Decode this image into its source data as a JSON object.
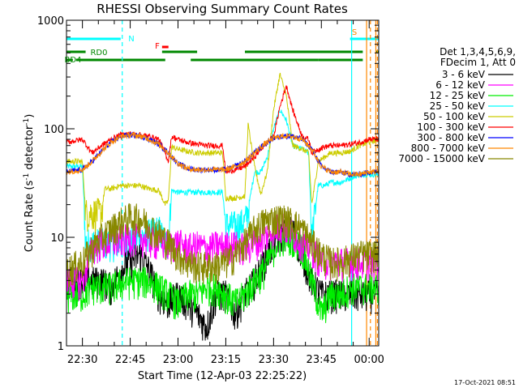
{
  "chart_data": {
    "type": "line",
    "title": "RHESSI Observing Summary Count Rates",
    "xlabel": "Start Time (12-Apr-03 22:25:22)",
    "ylabel": "Count Rate (s⁻¹ detector⁻¹)",
    "ylabel_parts": [
      "Count Rate (s",
      "-1",
      " detector",
      "-1",
      ")"
    ],
    "y_scale": "log",
    "ylim": [
      1,
      1000
    ],
    "xlim_minutes": [
      22.6,
      97.4
    ],
    "x_ticks": [
      {
        "label": "22:30",
        "minutes": 30
      },
      {
        "label": "22:45",
        "minutes": 45
      },
      {
        "label": "23:00",
        "minutes": 60
      },
      {
        "label": "23:15",
        "minutes": 75
      },
      {
        "label": "23:30",
        "minutes": 90
      },
      {
        "label": "23:45",
        "minutes": 105
      },
      {
        "label": "00:00",
        "minutes": 120
      }
    ],
    "y_ticks": [
      {
        "label": "1",
        "value": 1
      },
      {
        "label": "10",
        "value": 10
      },
      {
        "label": "100",
        "value": 100
      },
      {
        "label": "1000",
        "value": 1000
      }
    ],
    "x_start_minutes": 25,
    "x_end_minutes": 123,
    "legend_header": [
      "Det 1,3,4,5,6,9,",
      "FDecim 1, Att 0"
    ],
    "legend_position": "right",
    "footer_timestamp": "17-Oct-2021 08:51",
    "series": [
      {
        "name": "3 - 6 keV",
        "color": "#000000",
        "x": [
          25,
          30,
          33,
          36,
          39,
          42,
          45,
          48,
          51,
          54,
          57,
          60,
          63,
          66,
          69,
          72,
          75,
          78,
          81,
          84,
          87,
          90,
          93,
          96,
          99,
          102,
          105,
          108,
          111,
          114,
          117,
          120,
          123
        ],
        "y": [
          4,
          4,
          4,
          4,
          3.5,
          5,
          6,
          7,
          5,
          3,
          2.5,
          3,
          2.5,
          2,
          1.5,
          3,
          3,
          2,
          3,
          4,
          6,
          9,
          11,
          12,
          7,
          4,
          3,
          3,
          3,
          3,
          3,
          3,
          3
        ]
      },
      {
        "name": "6 - 12 keV",
        "color": "#ff00ff",
        "x": [
          25,
          30,
          33,
          36,
          39,
          42,
          45,
          48,
          51,
          54,
          57,
          60,
          63,
          66,
          69,
          72,
          75,
          78,
          81,
          84,
          87,
          90,
          93,
          96,
          99,
          102,
          105,
          108,
          111,
          114,
          117,
          120,
          123
        ],
        "y": [
          4,
          4,
          8,
          9,
          9,
          9.5,
          10,
          10,
          9.5,
          9,
          8.5,
          9,
          8,
          8.5,
          8,
          8.5,
          8.5,
          8.5,
          8,
          9,
          10,
          12,
          13,
          11,
          9,
          8,
          6,
          6,
          6,
          6,
          6,
          6,
          6
        ]
      },
      {
        "name": "12 - 25 keV",
        "color": "#00ee00",
        "x": [
          25,
          30,
          33,
          36,
          39,
          42,
          45,
          48,
          51,
          54,
          57,
          60,
          63,
          66,
          69,
          72,
          75,
          78,
          81,
          84,
          87,
          90,
          93,
          96,
          99,
          102,
          105,
          108,
          111,
          114,
          117,
          120,
          123
        ],
        "y": [
          3,
          3,
          3.5,
          3.5,
          3.5,
          3.8,
          4,
          4,
          4,
          3.5,
          3,
          2.5,
          3,
          3,
          3.5,
          3.5,
          3,
          2.5,
          3,
          4,
          5,
          8,
          10,
          10,
          8,
          4,
          2,
          3,
          3,
          3.5,
          3.5,
          3.5,
          3.5
        ]
      },
      {
        "name": "25 - 50 keV",
        "color": "#00ffff",
        "x": [
          25,
          30,
          31,
          33,
          36,
          39,
          42,
          45,
          48,
          51,
          54,
          56,
          57,
          58,
          60,
          63,
          66,
          69,
          72,
          74,
          75,
          78,
          81,
          82,
          84,
          86,
          88,
          90,
          92,
          94,
          96,
          99,
          101,
          102,
          104,
          106,
          108,
          111,
          114,
          117,
          120,
          123
        ],
        "y": [
          45,
          45,
          9,
          9,
          9,
          9,
          9,
          9.5,
          10,
          11,
          12,
          9,
          9,
          27,
          26,
          26,
          26,
          26,
          26,
          26,
          13,
          13,
          14,
          18,
          40,
          40,
          55,
          100,
          150,
          120,
          70,
          65,
          60,
          10,
          30,
          30,
          32,
          32,
          35,
          38,
          38,
          38
        ]
      },
      {
        "name": "50 - 100 keV",
        "color": "#cccc00",
        "x": [
          25,
          30,
          31,
          33,
          36,
          37,
          39,
          42,
          45,
          48,
          51,
          54,
          56,
          57,
          58,
          60,
          63,
          66,
          69,
          72,
          74,
          75,
          78,
          81,
          82,
          84,
          86,
          88,
          90,
          92,
          94,
          96,
          99,
          101,
          102,
          104,
          106,
          108,
          111,
          114,
          117,
          120,
          123
        ],
        "y": [
          50,
          50,
          17,
          17,
          17,
          28,
          28,
          30,
          30,
          30,
          28,
          27,
          20,
          22,
          68,
          65,
          62,
          60,
          60,
          60,
          60,
          23,
          23,
          24,
          110,
          45,
          25,
          40,
          150,
          320,
          200,
          70,
          65,
          60,
          20,
          50,
          55,
          60,
          60,
          62,
          70,
          75,
          80
        ]
      },
      {
        "name": "100 - 300 keV",
        "color": "#ff0000",
        "x": [
          25,
          30,
          33,
          36,
          39,
          42,
          45,
          48,
          51,
          54,
          56,
          57,
          58,
          60,
          63,
          66,
          69,
          72,
          74,
          75,
          78,
          81,
          84,
          86,
          88,
          90,
          92,
          94,
          96,
          99,
          101,
          102,
          104,
          106,
          108,
          111,
          114,
          117,
          120,
          123
        ],
        "y": [
          75,
          80,
          60,
          70,
          80,
          88,
          90,
          88,
          85,
          80,
          60,
          50,
          85,
          80,
          75,
          72,
          70,
          70,
          70,
          40,
          42,
          45,
          55,
          65,
          75,
          85,
          160,
          250,
          150,
          85,
          80,
          60,
          65,
          68,
          70,
          70,
          72,
          75,
          80,
          80
        ]
      },
      {
        "name": "300 - 800 keV",
        "color": "#0000ff",
        "x": [
          25,
          30,
          33,
          36,
          39,
          42,
          45,
          48,
          51,
          54,
          57,
          60,
          63,
          66,
          69,
          72,
          75,
          78,
          81,
          84,
          87,
          90,
          93,
          96,
          99,
          102,
          105,
          108,
          111,
          114,
          117,
          120,
          123
        ],
        "y": [
          40,
          42,
          50,
          62,
          75,
          85,
          88,
          86,
          80,
          72,
          60,
          48,
          43,
          42,
          42,
          42,
          42,
          45,
          50,
          60,
          72,
          82,
          86,
          85,
          80,
          65,
          45,
          40,
          40,
          38,
          38,
          40,
          40
        ]
      },
      {
        "name": "800 - 7000 keV",
        "color": "#ff8800",
        "x": [
          25,
          30,
          33,
          36,
          39,
          42,
          45,
          48,
          51,
          54,
          57,
          60,
          63,
          66,
          69,
          72,
          75,
          78,
          81,
          84,
          87,
          90,
          93,
          96,
          99,
          102,
          105,
          108,
          111,
          114,
          117,
          120,
          123
        ],
        "y": [
          40,
          42,
          50,
          62,
          75,
          85,
          88,
          86,
          80,
          72,
          60,
          48,
          43,
          42,
          42,
          42,
          42,
          45,
          50,
          60,
          72,
          82,
          86,
          85,
          80,
          65,
          45,
          40,
          40,
          38,
          38,
          40,
          40
        ]
      },
      {
        "name": "7000 - 15000 keV",
        "color": "#888800",
        "x": [
          25,
          30,
          33,
          36,
          39,
          42,
          45,
          48,
          51,
          54,
          57,
          60,
          63,
          66,
          69,
          72,
          75,
          78,
          81,
          84,
          87,
          90,
          93,
          96,
          99,
          102,
          105,
          108,
          111,
          114,
          117,
          120,
          123
        ],
        "y": [
          5,
          6,
          8,
          10,
          12,
          14,
          15.5,
          15,
          13,
          11,
          9,
          7,
          6,
          5.5,
          5.5,
          5.5,
          6,
          7,
          9,
          12,
          14,
          15,
          15,
          14,
          12,
          9,
          7,
          6,
          6,
          6.5,
          7,
          7,
          7
        ]
      }
    ],
    "annotations": {
      "flag_bars": [
        {
          "label": "RD0",
          "color": "#008800",
          "y": 64,
          "segments": [
            [
              25,
              31
            ],
            [
              55,
              66
            ],
            [
              81,
              118
            ],
            [
              122,
              140
            ]
          ]
        },
        {
          "label": "BD4",
          "color": "#008800",
          "y": 74,
          "segments": [
            [
              25,
              27
            ],
            [
              28,
              56
            ],
            [
              64,
              104
            ],
            [
              104,
              118
            ]
          ]
        },
        {
          "label": "N",
          "color": "#00ffff",
          "y": 48,
          "segments": [
            [
              25,
              42
            ],
            [
              114,
              140
            ]
          ]
        },
        {
          "label": "F",
          "color": "#ff0000",
          "y": 58,
          "segments": [
            [
              55,
              57
            ]
          ]
        },
        {
          "label": "S",
          "color": "#ff8800",
          "y": 48,
          "segments": []
        }
      ],
      "vertical_markers": [
        {
          "minutes": 42.5,
          "color": "#00ffff",
          "style": "dashed"
        },
        {
          "minutes": 114.5,
          "color": "#00ffff",
          "style": "solid"
        },
        {
          "minutes": 119.2,
          "color": "#ff8800",
          "style": "solid"
        },
        {
          "minutes": 120.4,
          "color": "#ff8800",
          "style": "dashed"
        },
        {
          "minutes": 122.1,
          "color": "#ff8800",
          "style": "solid"
        },
        {
          "minutes": 122.6,
          "color": "#ff8800",
          "style": "dashed"
        }
      ]
    }
  }
}
